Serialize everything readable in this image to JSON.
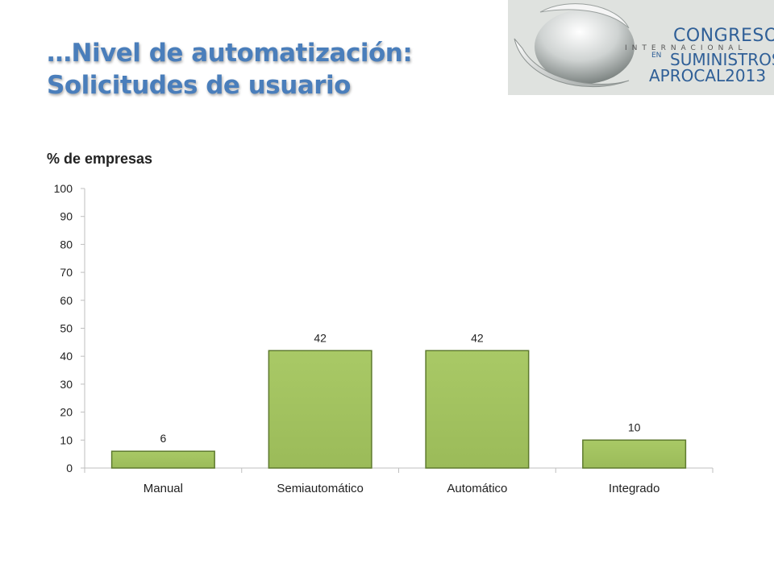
{
  "slide": {
    "title_line1": "…Nivel de automatización:",
    "title_line2": "Solicitudes de usuario"
  },
  "logo": {
    "line1": "CONGRESO",
    "line2": "INTERNACIONAL",
    "en": "EN",
    "line3": "SUMINISTROS",
    "line4": "APROCAL2013"
  },
  "colors": {
    "title": "#4a7ebb",
    "bar_fill": "#9bbb59",
    "bar_stroke": "#5e7a2e",
    "axis": "#bfbfbf"
  },
  "chart_data": {
    "type": "bar",
    "title": "",
    "xlabel": "",
    "ylabel": "% de empresas",
    "categories": [
      "Manual",
      "Semiautomático",
      "Automático",
      "Integrado"
    ],
    "values": [
      6,
      42,
      42,
      10
    ],
    "data_labels": [
      "6",
      "42",
      "42",
      "10"
    ],
    "ylim": [
      0,
      100
    ],
    "yticks": [
      0,
      10,
      20,
      30,
      40,
      50,
      60,
      70,
      80,
      90,
      100
    ],
    "grid": false,
    "legend": "none"
  }
}
